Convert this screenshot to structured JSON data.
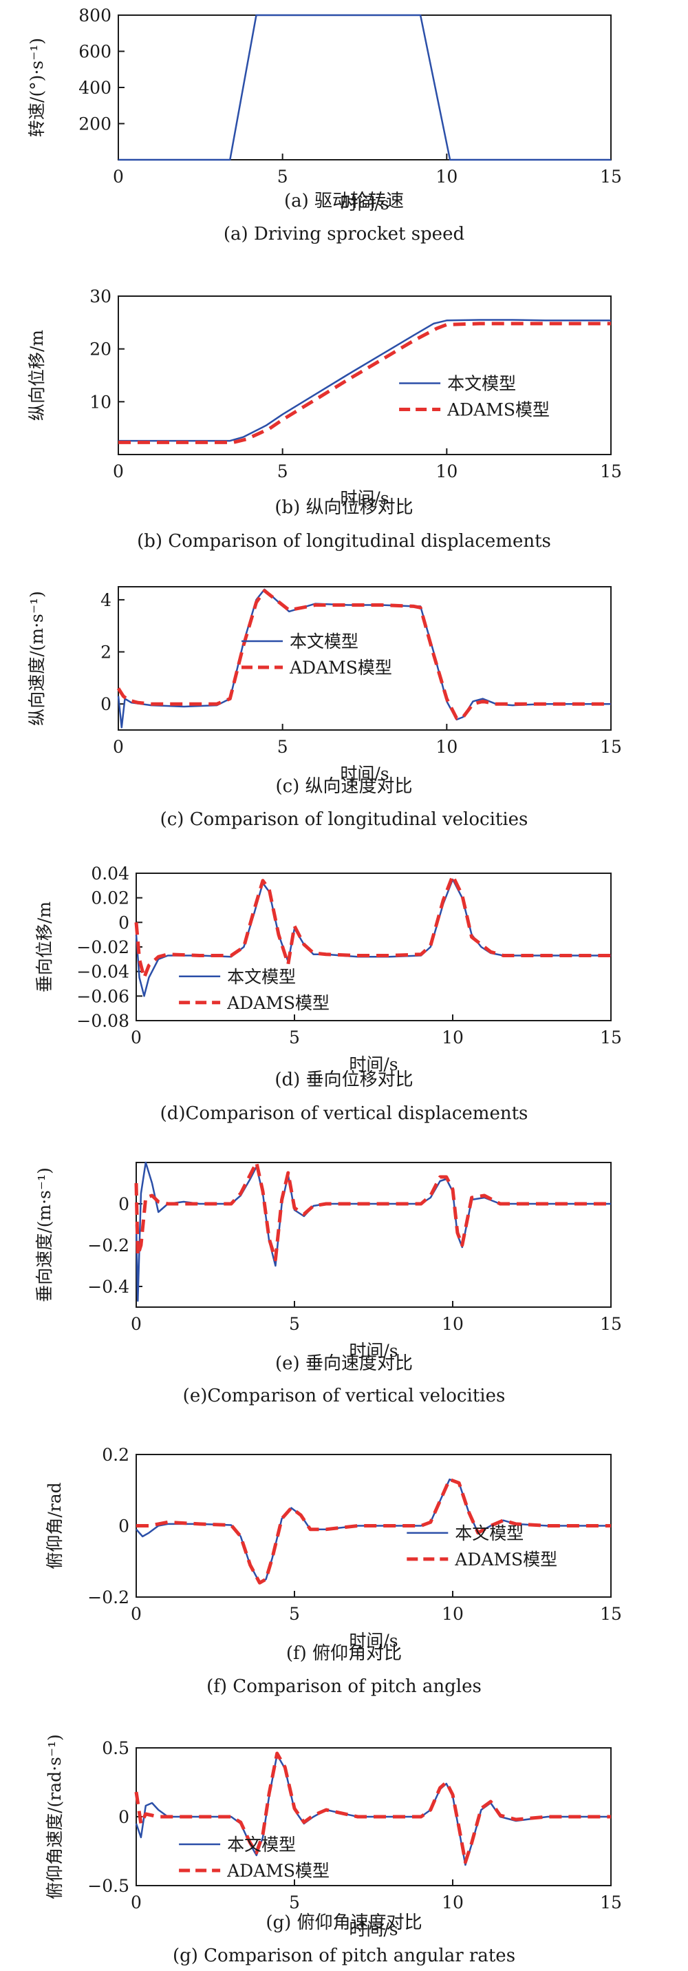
{
  "colors": {
    "model": "#2b4fa8",
    "adams": "#e5312e",
    "axis": "#1a1a1a"
  },
  "chart_data": [
    {
      "id": "a",
      "type": "line",
      "xlabel": "时间/s",
      "ylabel": "转速/(°)·s⁻¹)",
      "caption_cn": "(a) 驱动轮转速",
      "caption_en": "(a) Driving sprocket speed",
      "xlim": [
        0,
        15
      ],
      "ylim": [
        0,
        800
      ],
      "xticks": [
        0,
        5,
        10,
        15
      ],
      "yticks": [
        200,
        400,
        600,
        800
      ],
      "legend": null,
      "series": [
        {
          "style": "model",
          "x": [
            0,
            3.4,
            4.2,
            9.2,
            10.1,
            15
          ],
          "y": [
            0,
            0,
            800,
            800,
            0,
            0
          ]
        }
      ]
    },
    {
      "id": "b",
      "type": "line",
      "xlabel": "时间/s",
      "ylabel": "纵向位移/m",
      "caption_cn": "(b) 纵向位移对比",
      "caption_en": "(b) Comparison of longitudinal displacements",
      "xlim": [
        0,
        15
      ],
      "ylim": [
        0,
        30
      ],
      "xticks": [
        0,
        5,
        10,
        15
      ],
      "yticks": [
        10,
        20,
        30
      ],
      "legend": {
        "model": "本文模型",
        "adams": "ADAMS模型",
        "position": "right"
      },
      "series": [
        {
          "style": "model",
          "x": [
            0,
            3.4,
            3.8,
            4.5,
            5,
            6,
            7,
            8,
            9,
            9.6,
            10,
            11,
            12,
            13,
            14,
            15
          ],
          "y": [
            2.6,
            2.6,
            3.3,
            5.5,
            7.6,
            11.4,
            15.2,
            18.9,
            22.6,
            24.8,
            25.4,
            25.5,
            25.5,
            25.4,
            25.4,
            25.4
          ]
        },
        {
          "style": "adams",
          "x": [
            0,
            3.5,
            3.9,
            4.6,
            5,
            6,
            7,
            8,
            9,
            9.7,
            10,
            11,
            12,
            13,
            14,
            15
          ],
          "y": [
            2.3,
            2.3,
            2.9,
            4.9,
            6.6,
            10.4,
            14.2,
            17.9,
            21.6,
            23.9,
            24.6,
            24.8,
            24.8,
            24.8,
            24.8,
            24.8
          ]
        }
      ]
    },
    {
      "id": "c",
      "type": "line",
      "xlabel": "时间/s",
      "ylabel": "纵向速度/(m·s⁻¹)",
      "caption_cn": "(c) 纵向速度对比",
      "caption_en": "(c) Comparison of longitudinal velocities",
      "xlim": [
        0,
        15
      ],
      "ylim": [
        -1,
        4.5
      ],
      "xticks": [
        0,
        5,
        10,
        15
      ],
      "yticks": [
        0,
        2,
        4
      ],
      "legend": {
        "model": "本文模型",
        "adams": "ADAMS模型",
        "position": "left"
      },
      "series": [
        {
          "style": "model",
          "x": [
            0,
            0.1,
            0.2,
            0.4,
            1,
            2,
            3,
            3.4,
            3.8,
            4.2,
            4.45,
            4.8,
            5.2,
            5.6,
            6,
            7,
            8,
            9,
            9.2,
            9.6,
            10,
            10.3,
            10.5,
            10.8,
            11.1,
            11.5,
            12,
            13,
            15
          ],
          "y": [
            0.3,
            -0.9,
            0.2,
            0.05,
            -0.05,
            -0.1,
            -0.05,
            0.2,
            2.3,
            4.0,
            4.4,
            4.0,
            3.55,
            3.7,
            3.85,
            3.8,
            3.8,
            3.75,
            3.75,
            2.0,
            0.1,
            -0.6,
            -0.5,
            0.1,
            0.2,
            0.0,
            -0.05,
            0.0,
            0.0
          ]
        },
        {
          "style": "adams",
          "x": [
            0,
            0.15,
            0.3,
            0.6,
            1,
            2,
            3,
            3.4,
            3.8,
            4.2,
            4.45,
            4.8,
            5.2,
            5.6,
            6,
            7,
            8,
            9,
            9.2,
            9.6,
            10,
            10.3,
            10.5,
            10.8,
            11.1,
            11.5,
            12,
            13,
            15
          ],
          "y": [
            0.6,
            0.3,
            0.15,
            0.05,
            0.0,
            0.0,
            0.0,
            0.2,
            2.2,
            3.9,
            4.35,
            4.0,
            3.6,
            3.7,
            3.8,
            3.8,
            3.8,
            3.75,
            3.7,
            1.9,
            0.2,
            -0.55,
            -0.5,
            0.0,
            0.1,
            0.0,
            0.0,
            0.0,
            0.0
          ]
        }
      ]
    },
    {
      "id": "d",
      "type": "line",
      "xlabel": "时间/s",
      "ylabel": "垂向位移/m",
      "caption_cn": "(d) 垂向位移对比",
      "caption_en": "(d)Comparison of vertical displacements",
      "xlim": [
        0,
        15
      ],
      "ylim": [
        -0.08,
        0.04
      ],
      "xticks": [
        0,
        5,
        10,
        15
      ],
      "yticks": [
        -0.08,
        -0.06,
        -0.04,
        -0.02,
        0,
        0.02,
        0.04
      ],
      "legend": {
        "model": "本文模型",
        "adams": "ADAMS模型",
        "position": "bottom"
      },
      "series": [
        {
          "style": "model",
          "x": [
            0,
            0.1,
            0.25,
            0.4,
            0.7,
            1,
            2,
            3,
            3.4,
            3.7,
            4.0,
            4.2,
            4.5,
            4.8,
            5.0,
            5.3,
            5.6,
            6,
            7,
            8,
            9,
            9.3,
            9.7,
            10,
            10.3,
            10.6,
            10.9,
            11.2,
            11.6,
            12,
            13,
            15
          ],
          "y": [
            -0.01,
            -0.045,
            -0.06,
            -0.045,
            -0.03,
            -0.027,
            -0.027,
            -0.028,
            -0.02,
            0.005,
            0.032,
            0.025,
            -0.01,
            -0.032,
            -0.005,
            -0.018,
            -0.026,
            -0.026,
            -0.028,
            -0.028,
            -0.027,
            -0.02,
            0.015,
            0.035,
            0.02,
            -0.01,
            -0.02,
            -0.025,
            -0.027,
            -0.027,
            -0.027,
            -0.027
          ]
        },
        {
          "style": "adams",
          "x": [
            0,
            0.1,
            0.25,
            0.4,
            0.7,
            1,
            2,
            3,
            3.4,
            3.7,
            4.0,
            4.2,
            4.5,
            4.8,
            5.0,
            5.3,
            5.6,
            6,
            7,
            8,
            9,
            9.3,
            9.7,
            10,
            10.3,
            10.6,
            10.9,
            11.2,
            11.6,
            12,
            13,
            15
          ],
          "y": [
            0.0,
            -0.03,
            -0.045,
            -0.035,
            -0.028,
            -0.026,
            -0.027,
            -0.027,
            -0.02,
            0.008,
            0.034,
            0.027,
            -0.01,
            -0.034,
            -0.003,
            -0.018,
            -0.025,
            -0.026,
            -0.027,
            -0.027,
            -0.026,
            -0.019,
            0.018,
            0.038,
            0.022,
            -0.012,
            -0.018,
            -0.024,
            -0.027,
            -0.027,
            -0.027,
            -0.027
          ]
        }
      ]
    },
    {
      "id": "e",
      "type": "line",
      "xlabel": "时间/s",
      "ylabel": "垂向速度/(m·s⁻¹)",
      "caption_cn": "(e) 垂向速度对比",
      "caption_en": "(e)Comparison of vertical velocities",
      "xlim": [
        0,
        15
      ],
      "ylim": [
        -0.5,
        0.2
      ],
      "xticks": [
        0,
        5,
        10,
        15
      ],
      "yticks": [
        -0.4,
        -0.2,
        0
      ],
      "legend": null,
      "series": [
        {
          "style": "model",
          "x": [
            0,
            0.05,
            0.15,
            0.3,
            0.5,
            0.7,
            1,
            1.5,
            2,
            3,
            3.3,
            3.6,
            3.8,
            4.0,
            4.2,
            4.4,
            4.6,
            4.8,
            5.0,
            5.3,
            5.6,
            6,
            7,
            8,
            9,
            9.3,
            9.6,
            9.8,
            10,
            10.15,
            10.3,
            10.6,
            11,
            11.5,
            12,
            13,
            15
          ],
          "y": [
            -0.1,
            -0.47,
            0.05,
            0.2,
            0.1,
            -0.04,
            0.0,
            0.01,
            0.0,
            0.0,
            0.04,
            0.12,
            0.18,
            0.05,
            -0.18,
            -0.3,
            0.0,
            0.14,
            -0.03,
            -0.06,
            -0.01,
            0.0,
            0.0,
            0.0,
            0.0,
            0.03,
            0.11,
            0.12,
            0.06,
            -0.15,
            -0.21,
            0.02,
            0.03,
            0.0,
            0.0,
            0.0,
            0.0
          ]
        },
        {
          "style": "adams",
          "x": [
            0,
            0.05,
            0.15,
            0.3,
            0.5,
            0.7,
            1,
            1.5,
            2,
            3,
            3.3,
            3.6,
            3.8,
            4.0,
            4.2,
            4.4,
            4.6,
            4.8,
            5.0,
            5.3,
            5.6,
            6,
            7,
            8,
            9,
            9.3,
            9.6,
            9.8,
            10,
            10.15,
            10.3,
            10.6,
            11,
            11.5,
            12,
            13,
            15
          ],
          "y": [
            0.1,
            -0.25,
            -0.2,
            0.03,
            0.04,
            0.01,
            0.0,
            0.0,
            0.0,
            0.0,
            0.05,
            0.14,
            0.2,
            0.06,
            -0.17,
            -0.27,
            0.02,
            0.15,
            -0.02,
            -0.05,
            -0.01,
            0.0,
            0.0,
            0.0,
            0.0,
            0.04,
            0.13,
            0.13,
            0.07,
            -0.14,
            -0.2,
            0.03,
            0.04,
            0.0,
            0.0,
            0.0,
            0.0
          ]
        }
      ]
    },
    {
      "id": "f",
      "type": "line",
      "xlabel": "时间/s",
      "ylabel": "俯仰角/rad",
      "caption_cn": "(f) 俯仰角对比",
      "caption_en": "(f) Comparison of pitch angles",
      "xlim": [
        0,
        15
      ],
      "ylim": [
        -0.2,
        0.2
      ],
      "xticks": [
        0,
        5,
        10,
        15
      ],
      "yticks": [
        -0.2,
        0,
        0.2
      ],
      "legend": {
        "model": "本文模型",
        "adams": "ADAMS模型",
        "position": "right"
      },
      "series": [
        {
          "style": "model",
          "x": [
            0,
            0.2,
            0.4,
            0.7,
            1,
            2,
            3,
            3.3,
            3.6,
            3.9,
            4.1,
            4.3,
            4.6,
            4.9,
            5.2,
            5.5,
            6,
            7,
            8,
            9,
            9.3,
            9.6,
            9.9,
            10.2,
            10.5,
            10.8,
            11.2,
            11.6,
            12,
            13,
            15
          ],
          "y": [
            -0.01,
            -0.03,
            -0.02,
            0.0,
            0.005,
            0.005,
            0.002,
            -0.03,
            -0.11,
            -0.16,
            -0.15,
            -0.09,
            0.02,
            0.05,
            0.03,
            -0.01,
            -0.01,
            0.0,
            0.0,
            0.0,
            0.01,
            0.07,
            0.13,
            0.12,
            0.04,
            -0.02,
            0.0,
            0.015,
            0.005,
            0.0,
            0.0
          ]
        },
        {
          "style": "adams",
          "x": [
            0,
            0.2,
            0.4,
            0.7,
            1,
            2,
            3,
            3.3,
            3.6,
            3.9,
            4.1,
            4.3,
            4.6,
            4.9,
            5.2,
            5.5,
            6,
            7,
            8,
            9,
            9.3,
            9.6,
            9.9,
            10.2,
            10.5,
            10.8,
            11.2,
            11.6,
            12,
            13,
            15
          ],
          "y": [
            0.0,
            0.0,
            0.0,
            0.005,
            0.01,
            0.005,
            0.002,
            -0.03,
            -0.11,
            -0.16,
            -0.15,
            -0.09,
            0.02,
            0.05,
            0.03,
            -0.01,
            -0.01,
            0.0,
            0.0,
            0.0,
            0.01,
            0.07,
            0.13,
            0.12,
            0.04,
            -0.02,
            0.0,
            0.015,
            0.005,
            0.0,
            0.0
          ]
        }
      ]
    },
    {
      "id": "g",
      "type": "line",
      "xlabel": "时间/s",
      "ylabel": "俯仰角速度/(rad·s⁻¹)",
      "caption_cn": "(g) 俯仰角速度对比",
      "caption_en": "(g) Comparison of pitch angular rates",
      "xlim": [
        0,
        15
      ],
      "ylim": [
        -0.5,
        0.5
      ],
      "xticks": [
        0,
        5,
        10,
        15
      ],
      "yticks": [
        -0.5,
        0,
        0.5
      ],
      "legend": {
        "model": "本文模型",
        "adams": "ADAMS模型",
        "position": "bottom"
      },
      "series": [
        {
          "style": "model",
          "x": [
            0,
            0.15,
            0.3,
            0.5,
            0.7,
            1,
            2,
            3,
            3.3,
            3.6,
            3.8,
            4.0,
            4.2,
            4.45,
            4.7,
            5.0,
            5.3,
            5.6,
            6,
            7,
            8,
            9,
            9.3,
            9.6,
            9.8,
            10.0,
            10.2,
            10.4,
            10.6,
            10.9,
            11.2,
            11.5,
            12,
            13,
            15
          ],
          "y": [
            -0.05,
            -0.15,
            0.08,
            0.1,
            0.05,
            0.0,
            0.0,
            0.0,
            -0.05,
            -0.2,
            -0.28,
            -0.15,
            0.15,
            0.45,
            0.35,
            0.05,
            -0.05,
            0.0,
            0.05,
            0.0,
            0.0,
            0.0,
            0.05,
            0.2,
            0.24,
            0.15,
            -0.1,
            -0.35,
            -0.2,
            0.05,
            0.1,
            0.0,
            -0.03,
            0.0,
            0.0
          ]
        },
        {
          "style": "adams",
          "x": [
            0,
            0.15,
            0.3,
            0.5,
            0.7,
            1,
            2,
            3,
            3.3,
            3.6,
            3.8,
            4.0,
            4.2,
            4.45,
            4.7,
            5.0,
            5.3,
            5.6,
            6,
            7,
            8,
            9,
            9.3,
            9.6,
            9.8,
            10.0,
            10.2,
            10.4,
            10.6,
            10.9,
            11.2,
            11.5,
            12,
            13,
            15
          ],
          "y": [
            0.18,
            -0.05,
            0.02,
            0.01,
            0.0,
            0.0,
            0.0,
            0.0,
            -0.04,
            -0.19,
            -0.26,
            -0.13,
            0.17,
            0.46,
            0.36,
            0.06,
            -0.04,
            0.01,
            0.05,
            0.0,
            0.0,
            0.0,
            0.05,
            0.21,
            0.25,
            0.16,
            -0.08,
            -0.33,
            -0.19,
            0.06,
            0.11,
            0.01,
            -0.02,
            0.0,
            0.0
          ]
        }
      ]
    }
  ]
}
